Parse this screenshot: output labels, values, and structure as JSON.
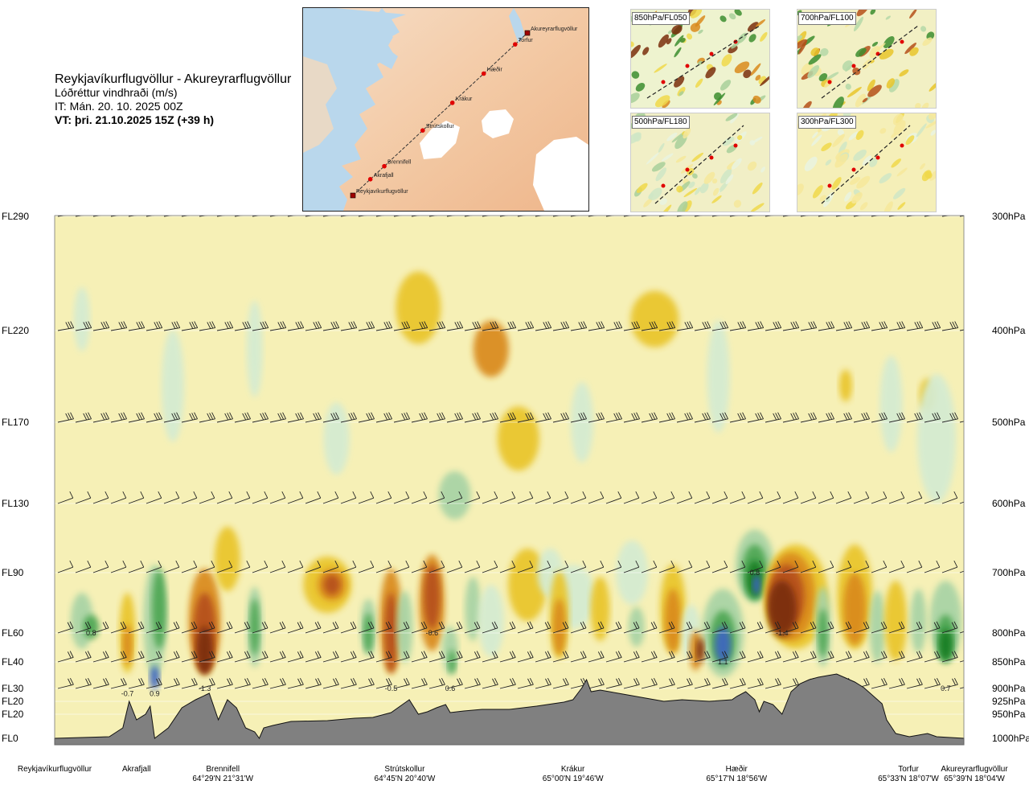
{
  "header": {
    "route": "Reykjavíkurflugvöllur - Akureyrarflugvöllur",
    "variable": "Lóðréttur vindhraði (m/s)",
    "issue_time": "IT: Mán. 20. 10. 2025 00Z",
    "valid_time": "VT: þri. 21.10.2025 15Z (+39 h)"
  },
  "route_map": {
    "points": [
      {
        "name": "Akureyrarflugvöllur",
        "type": "airport"
      },
      {
        "name": "Torfur",
        "type": "waypoint"
      },
      {
        "name": "Hæðir",
        "type": "waypoint"
      },
      {
        "name": "Krákur",
        "type": "waypoint"
      },
      {
        "name": "Strútskollur",
        "type": "waypoint"
      },
      {
        "name": "Brennifell",
        "type": "waypoint"
      },
      {
        "name": "Akrafjall",
        "type": "waypoint"
      },
      {
        "name": "Reykjavíkurflugvöllur",
        "type": "airport"
      }
    ],
    "colors": {
      "sea": "#b9d7ec",
      "land": "#f3c9a4",
      "ice": "#ffffff",
      "route": "#333333",
      "point": "#e00000"
    }
  },
  "insets": [
    {
      "label": "850hPa/FL050"
    },
    {
      "label": "700hPa/FL100"
    },
    {
      "label": "500hPa/FL180"
    },
    {
      "label": "300hPa/FL300"
    }
  ],
  "chart_data": {
    "type": "heatmap",
    "title": "Lóðréttur vindhraði (m/s)",
    "y_left_labels": [
      {
        "label": "FL290",
        "hpa": 300
      },
      {
        "label": "FL220",
        "hpa": 400
      },
      {
        "label": "FL170",
        "hpa": 500
      },
      {
        "label": "FL130",
        "hpa": 600
      },
      {
        "label": "FL90",
        "hpa": 700
      },
      {
        "label": "FL60",
        "hpa": 800
      },
      {
        "label": "FL40",
        "hpa": 850
      },
      {
        "label": "FL30",
        "hpa": 900
      },
      {
        "label": "FL20",
        "hpa": 925
      },
      {
        "label": "FL20",
        "hpa": 950
      },
      {
        "label": "FL0",
        "hpa": 1000
      }
    ],
    "y_right_labels": [
      "300hPa",
      "400hPa",
      "500hPa",
      "600hPa",
      "700hPa",
      "800hPa",
      "850hPa",
      "900hPa",
      "925hPa",
      "950hPa",
      "1000hPa"
    ],
    "pressure_range": [
      1000,
      300
    ],
    "stations": [
      {
        "name": "Reykjavíkurflugvöllur",
        "coord": "",
        "frac": 0.0
      },
      {
        "name": "Akrafjall",
        "coord": "",
        "frac": 0.09
      },
      {
        "name": "Brennifell",
        "coord": "64°29'N 21°31'W",
        "frac": 0.185
      },
      {
        "name": "Strútskollur",
        "coord": "64°45'N 20°40'W",
        "frac": 0.385
      },
      {
        "name": "Krákur",
        "coord": "65°00'N 19°46'W",
        "frac": 0.57
      },
      {
        "name": "Hæðir",
        "coord": "65°17'N 18°56'W",
        "frac": 0.75
      },
      {
        "name": "Torfur",
        "coord": "65°33'N 18°07'W",
        "frac": 0.94
      },
      {
        "name": "Akureyrarflugvöllur",
        "coord": "65°39'N 18°04'W",
        "frac": 1.0
      }
    ],
    "extrema": [
      {
        "value": "0.8",
        "frac": 0.04,
        "hpa": 800
      },
      {
        "value": "-0.7",
        "frac": 0.08,
        "hpa": 910
      },
      {
        "value": "0.9",
        "frac": 0.11,
        "hpa": 910
      },
      {
        "value": "-1.3",
        "frac": 0.165,
        "hpa": 900
      },
      {
        "value": "-0.5",
        "frac": 0.37,
        "hpa": 900
      },
      {
        "value": "-0.6",
        "frac": 0.415,
        "hpa": 800
      },
      {
        "value": "0.6",
        "frac": 0.435,
        "hpa": 900
      },
      {
        "value": "1.1",
        "frac": 0.735,
        "hpa": 850
      },
      {
        "value": "0.8",
        "frac": 0.77,
        "hpa": 700
      },
      {
        "value": "-1.4",
        "frac": 0.8,
        "hpa": 800
      },
      {
        "value": "0.7",
        "frac": 0.98,
        "hpa": 900
      }
    ],
    "color_scale": {
      "strong_down": "#7a2e0d",
      "down_3": "#b5501a",
      "down_2": "#d98a1c",
      "down_1": "#e9c52c",
      "weak_down": "#f3e79c",
      "neutral": "#f6f0b6",
      "weak_up": "#d4ebd2",
      "up_1": "#a7d3a5",
      "up_2": "#4ea653",
      "up_3": "#147d20",
      "strong_up": "#3c66c0",
      "terrain": "#808080"
    },
    "grid": "horizontal at pressure levels",
    "legend": "none"
  }
}
